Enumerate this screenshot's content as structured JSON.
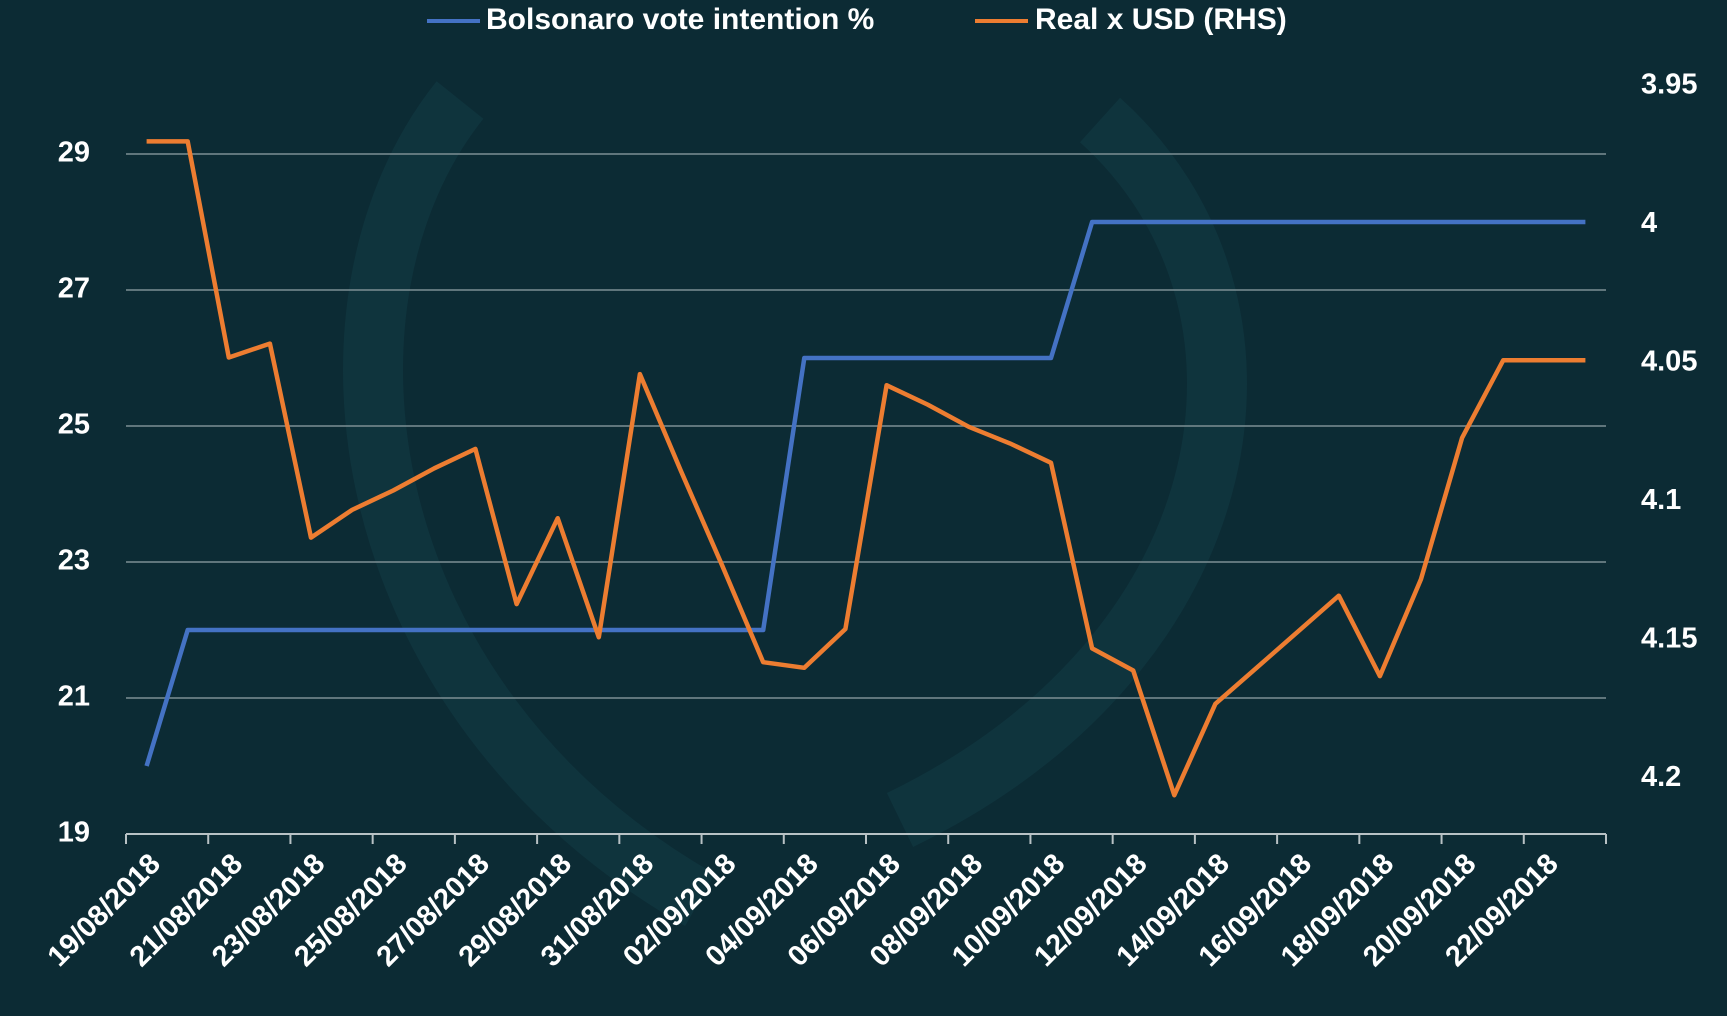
{
  "chart_data": {
    "type": "line",
    "categories": [
      "19/08/2018",
      null,
      "21/08/2018",
      null,
      "23/08/2018",
      null,
      "25/08/2018",
      null,
      "27/08/2018",
      null,
      "29/08/2018",
      null,
      "31/08/2018",
      null,
      "02/09/2018",
      null,
      "04/09/2018",
      null,
      "06/09/2018",
      null,
      "08/09/2018",
      null,
      "10/09/2018",
      null,
      "12/09/2018",
      null,
      "14/09/2018",
      null,
      "16/09/2018",
      null,
      "18/09/2018",
      null,
      "20/09/2018",
      null,
      "22/09/2018",
      null
    ],
    "series": [
      {
        "name": "Bolsonaro vote intention  %",
        "color": "#4472c4",
        "values": [
          20,
          22,
          22,
          22,
          22,
          22,
          22,
          22,
          22,
          22,
          22,
          22,
          22,
          22,
          22,
          22,
          26,
          26,
          26,
          26,
          26,
          26,
          26,
          28,
          28,
          28,
          28,
          28,
          28,
          28,
          28,
          28,
          28,
          28,
          28,
          28
        ]
      },
      {
        "name": "Real x USD (RHS)",
        "color": "#ed7d31",
        "axis": "y2",
        "values": [
          3.97,
          3.97,
          4.048,
          4.043,
          4.113,
          4.103,
          4.096,
          4.088,
          4.081,
          4.137,
          4.106,
          4.149,
          4.054,
          4.089,
          4.123,
          4.158,
          4.16,
          4.146,
          4.058,
          4.065,
          4.073,
          4.079,
          4.086,
          4.153,
          4.161,
          4.206,
          4.173,
          4.16,
          4.147,
          4.134,
          4.163,
          4.128,
          4.077,
          4.049,
          4.049,
          4.049
        ]
      }
    ],
    "ylim": [
      19,
      30
    ],
    "yticks": [
      19,
      21,
      23,
      25,
      27,
      29
    ],
    "y2lim": [
      4.22,
      3.95
    ],
    "y2ticks": [
      3.95,
      4,
      4.05,
      4.1,
      4.15,
      4.2
    ],
    "grid": true
  }
}
